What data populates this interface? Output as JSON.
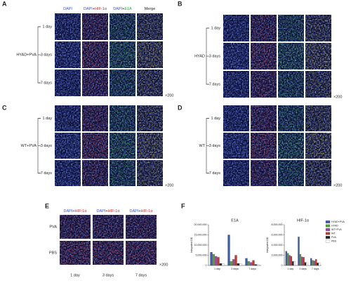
{
  "panels": [
    {
      "label": "A",
      "group": "HYAD+PVA",
      "rows": [
        "1 day",
        "3 days",
        "7 days"
      ],
      "magnification": "×200",
      "columns": [
        {
          "parts": [
            "DAPI"
          ],
          "colors": [
            "#3a56d6"
          ]
        },
        {
          "parts": [
            "DAPI",
            "+",
            "HIF-1α"
          ],
          "colors": [
            "#3a56d6",
            "#222222",
            "#d62a2a"
          ]
        },
        {
          "parts": [
            "DAPI",
            "+",
            "E1A"
          ],
          "colors": [
            "#3a56d6",
            "#222222",
            "#2a9a3a"
          ]
        },
        {
          "parts": [
            "Merge"
          ],
          "colors": [
            "#222222"
          ]
        }
      ],
      "tints": [
        "#2a40ff",
        "#ff2020",
        "#20ff30",
        "#ffd020"
      ]
    },
    {
      "label": "B",
      "group": "HYAD",
      "rows": [
        "1 day",
        "3 days",
        "7 days"
      ],
      "magnification": "×200",
      "tints": [
        "#2a40ff",
        "#ff2020",
        "#20ff30",
        "#ffd020"
      ]
    },
    {
      "label": "C",
      "group": "WT+PVA",
      "rows": [
        "1 day",
        "3 days",
        "7 days"
      ],
      "magnification": "×200",
      "tints": [
        "#2a40ff",
        "#ff2020",
        "#20ff30",
        "#ffd020"
      ]
    },
    {
      "label": "D",
      "group": "WT",
      "rows": [
        "1 day",
        "3 days",
        "7 days"
      ],
      "magnification": "×200",
      "tints": [
        "#2a40ff",
        "#ff2020",
        "#20ff30",
        "#ffd020"
      ]
    },
    {
      "label": "E",
      "rows": [
        "PVA",
        "PBS"
      ],
      "magnification": "×200",
      "columns": [
        {
          "parts": [
            "DAPI",
            "+",
            "HIF-1α"
          ],
          "colors": [
            "#3a56d6",
            "#222222",
            "#d62a2a"
          ]
        },
        {
          "parts": [
            "DAPI",
            "+",
            "HIF-1α"
          ],
          "colors": [
            "#3a56d6",
            "#222222",
            "#d62a2a"
          ]
        },
        {
          "parts": [
            "DAPI",
            "+",
            "HIF-1α"
          ],
          "colors": [
            "#3a56d6",
            "#222222",
            "#d62a2a"
          ]
        }
      ],
      "column_labels": [
        "1 day",
        "3 days",
        "7 days"
      ],
      "tints": [
        "#ff2020",
        "#ff2020",
        "#ff2020"
      ]
    },
    {
      "label": "F"
    }
  ],
  "chart_data": [
    {
      "type": "bar",
      "title": "E1A",
      "y_label": "Integrated OD",
      "categories": [
        "1 day",
        "3 days",
        "7 days"
      ],
      "ylim": [
        0,
        20000000
      ],
      "yticks": [
        {
          "value": 0,
          "label": "0"
        },
        {
          "value": 5000000,
          "label": "5,000,000"
        },
        {
          "value": 10000000,
          "label": "10,000,000"
        },
        {
          "value": 15000000,
          "label": "15,000,000"
        },
        {
          "value": 20000000,
          "label": "20,000,000"
        }
      ],
      "series": [
        {
          "color": "#3a5fa8",
          "values": [
            6500000,
            15000000,
            3500000
          ]
        },
        {
          "color": "#5a9a3a",
          "values": [
            5500000,
            2000000,
            2000000
          ]
        },
        {
          "color": "#9a4aa0",
          "values": [
            4500000,
            3000000,
            1500000
          ]
        },
        {
          "color": "#c0392b",
          "values": [
            4000000,
            5000000,
            2500000
          ]
        },
        {
          "color": "#222222",
          "values": [
            1000000,
            1000000,
            500000
          ]
        },
        {
          "color": "#ffffff",
          "values": [
            1000000,
            1000000,
            500000
          ]
        }
      ]
    },
    {
      "type": "bar",
      "title": "HIF-1α",
      "y_label": "Integrated OD",
      "categories": [
        "1 day",
        "3 days",
        "7 days"
      ],
      "ylim": [
        0,
        8000000
      ],
      "yticks": [
        {
          "value": 0,
          "label": "0"
        },
        {
          "value": 2000000,
          "label": "2,000,000"
        },
        {
          "value": 4000000,
          "label": "4,000,000"
        },
        {
          "value": 6000000,
          "label": "6,000,000"
        },
        {
          "value": 8000000,
          "label": "8,000,000"
        }
      ],
      "legend": "right",
      "series": [
        {
          "name": "HYAD+PVA",
          "color": "#3a5fa8",
          "values": [
            2800000,
            5600000,
            1400000
          ]
        },
        {
          "name": "HYAD",
          "color": "#5a9a3a",
          "values": [
            2400000,
            2200000,
            1000000
          ]
        },
        {
          "name": "WT+PVA",
          "color": "#9a4aa0",
          "values": [
            2000000,
            1700000,
            900000
          ]
        },
        {
          "name": "WT",
          "color": "#c0392b",
          "values": [
            1800000,
            1600000,
            1200000
          ]
        },
        {
          "name": "PVA",
          "color": "#222222",
          "values": [
            800000,
            600000,
            500000
          ]
        },
        {
          "name": "PBS",
          "color": "#ffffff",
          "values": [
            800000,
            600000,
            500000
          ]
        }
      ]
    }
  ]
}
